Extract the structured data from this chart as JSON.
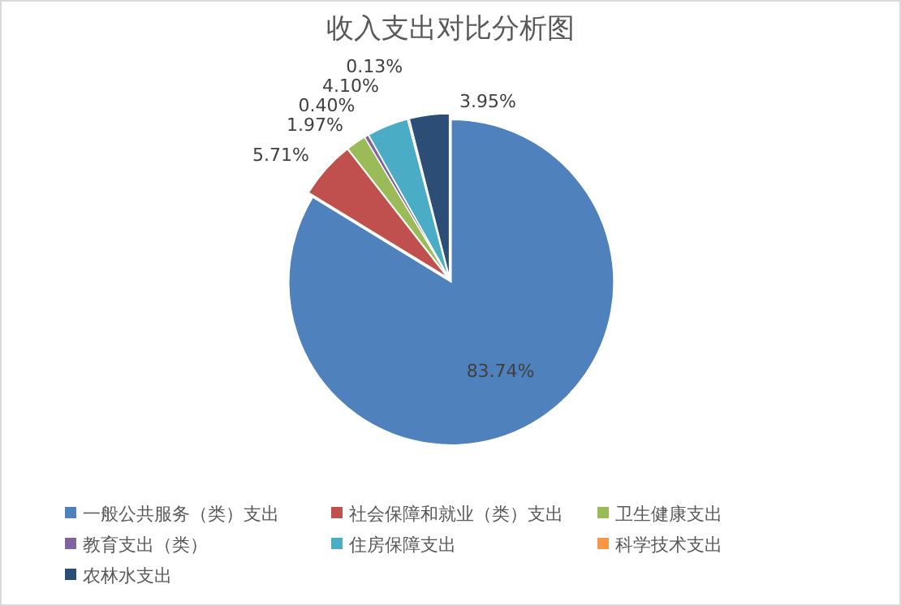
{
  "chart_data": {
    "type": "pie",
    "title": "收入支出对比分析图",
    "categories": [
      "一般公共服务（类）支出",
      "社会保障和就业（类）支出",
      "卫生健康支出",
      "教育支出（类）",
      "住房保障支出",
      "科学技术支出",
      "农林水支出"
    ],
    "values": [
      83.74,
      5.71,
      1.97,
      0.4,
      4.1,
      0.13,
      3.95
    ],
    "colors": [
      "#4f81bd",
      "#c0504d",
      "#9bbb59",
      "#8064a2",
      "#4bacc6",
      "#f79646",
      "#2c4d75"
    ],
    "value_labels": [
      "83.74%",
      "5.71%",
      "1.97%",
      "0.40%",
      "4.10%",
      "0.13%",
      "3.95%"
    ],
    "legend": "bottom"
  }
}
